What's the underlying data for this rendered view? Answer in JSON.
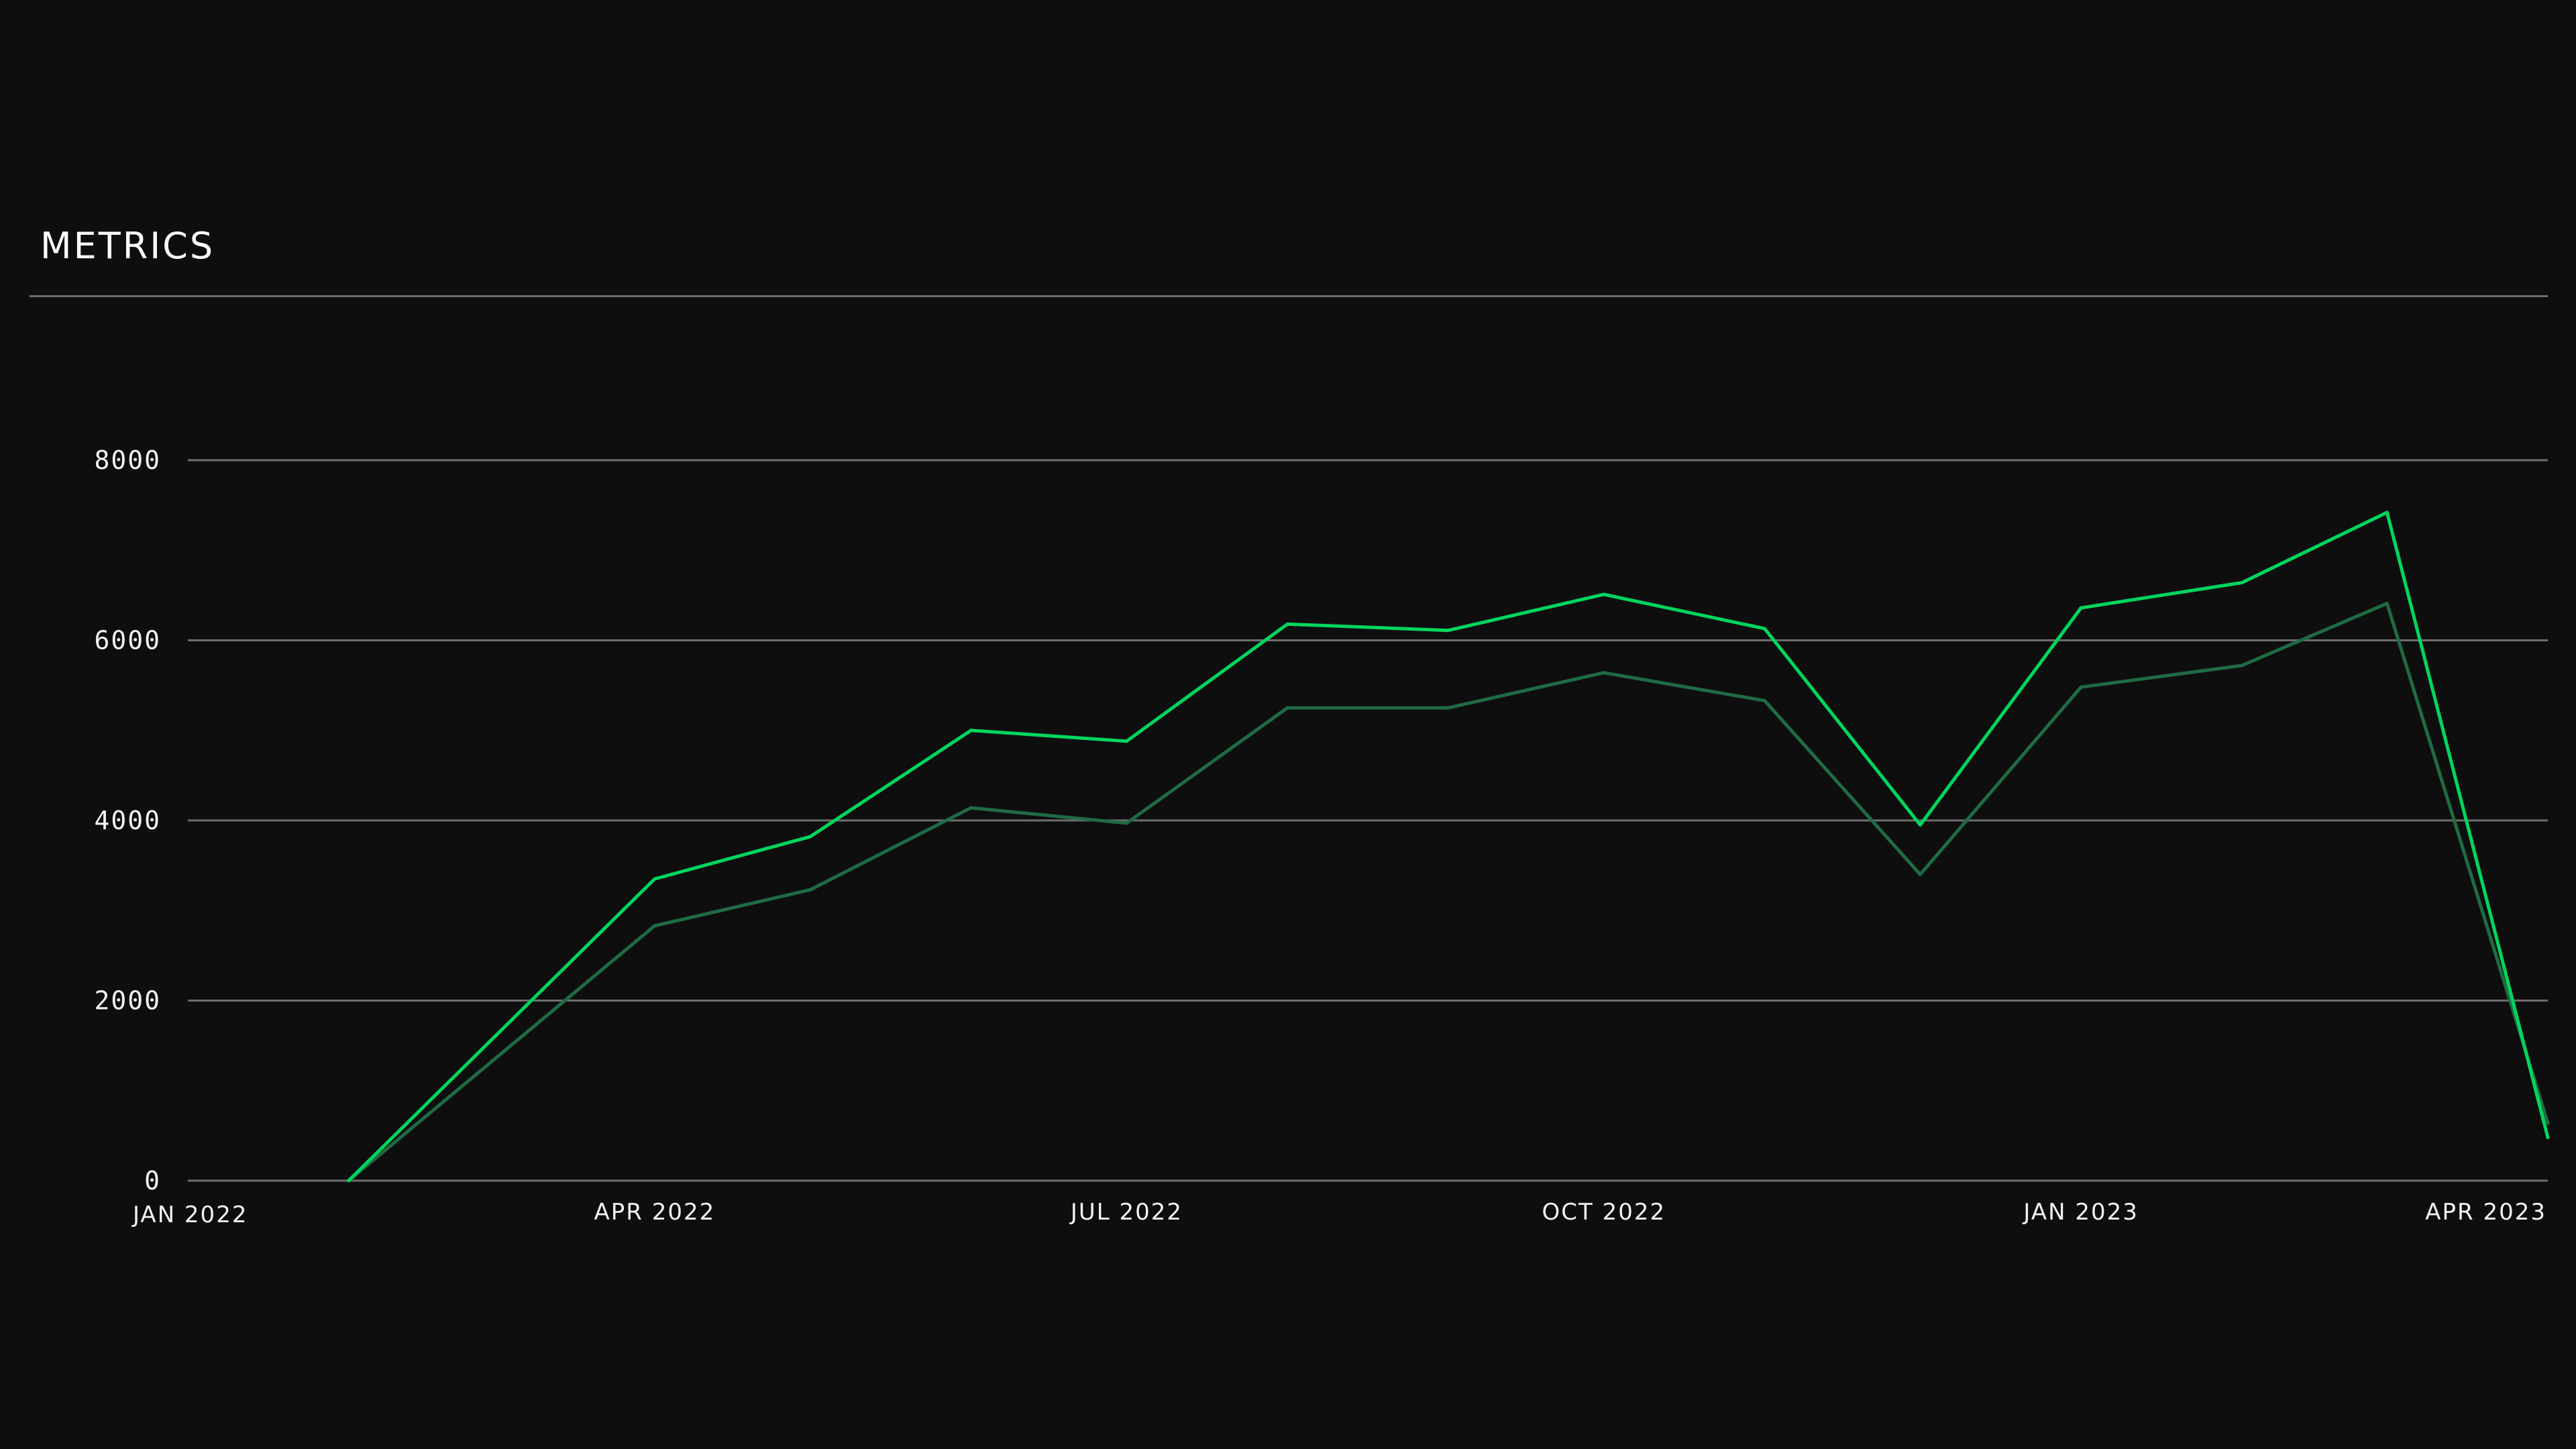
{
  "title": "METRICS",
  "colors": {
    "background": "#0e0e0f",
    "grid": "#6e6e6e",
    "series_primary": "#00d65c",
    "series_secondary": "#1f6b43",
    "text": "#f2f2f2"
  },
  "chart_data": {
    "type": "line",
    "title": "METRICS",
    "xlabel": "",
    "ylabel": "",
    "ylim": [
      0,
      8000
    ],
    "yticks": [
      "0",
      "2000",
      "4000",
      "6000",
      "8000"
    ],
    "xticks": [
      "JAN 2022",
      "APR 2022",
      "JUL 2022",
      "OCT 2022",
      "JAN 2023",
      "APR 2023"
    ],
    "grid": true,
    "legend": "none",
    "x": [
      "2022-02-01",
      "2022-04-01",
      "2022-05-01",
      "2022-06-01",
      "2022-07-01",
      "2022-08-01",
      "2022-09-01",
      "2022-10-01",
      "2022-11-01",
      "2022-12-01",
      "2023-01-01",
      "2023-02-01",
      "2023-03-01",
      "2023-04-01"
    ],
    "series": [
      {
        "color": "#00d65c",
        "values": [
          0,
          3350,
          3820,
          5000,
          4880,
          6180,
          6110,
          6510,
          6130,
          3950,
          6360,
          6640,
          7420,
          480
        ]
      },
      {
        "color": "#1f6b43",
        "values": [
          0,
          2830,
          3230,
          4140,
          3970,
          5250,
          5250,
          5640,
          5330,
          3400,
          5480,
          5720,
          6410,
          640
        ]
      }
    ]
  }
}
